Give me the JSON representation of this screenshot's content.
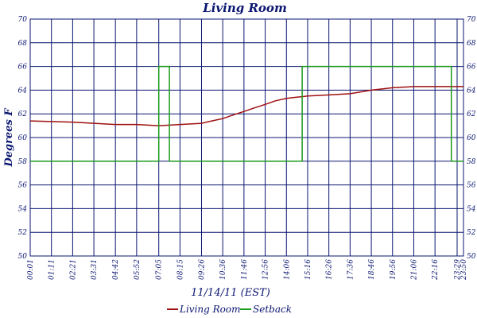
{
  "chart_data": {
    "type": "line",
    "title": "Living Room",
    "xlabel": "11/14/11 (EST)",
    "ylabel": "Degrees F",
    "ylim": [
      50,
      70
    ],
    "yticks": [
      "50",
      "52",
      "54",
      "56",
      "58",
      "60",
      "62",
      "64",
      "66",
      "68",
      "70"
    ],
    "xlim": [
      "00:01",
      "23:50"
    ],
    "xticks": [
      "00:01",
      "01:11",
      "02:21",
      "03:31",
      "04:42",
      "05:52",
      "07:05",
      "08:15",
      "09:26",
      "10:36",
      "11:46",
      "12:56",
      "14:06",
      "15:16",
      "16:26",
      "17:36",
      "18:46",
      "19:56",
      "21:06",
      "22:16",
      "23:29",
      "23:50"
    ],
    "xtick_labels": [
      "00:01",
      "01:11",
      "02:21",
      "03:31",
      "04:42",
      "05:52",
      "07:05",
      "08:15",
      "09:26",
      "10:36",
      "11:46",
      "12:56",
      "14:06",
      "15:16",
      "16:26",
      "17:36",
      "18:46",
      "19:56",
      "21:06",
      "22:16",
      "23:29",
      "23:50"
    ],
    "grid": true,
    "legend_position": "bottom",
    "series": [
      {
        "name": "Living Room",
        "color": "#a01010",
        "x": [
          "00:01",
          "02:21",
          "03:31",
          "04:42",
          "05:52",
          "07:05",
          "08:15",
          "09:26",
          "10:00",
          "10:36",
          "11:10",
          "11:46",
          "12:20",
          "12:56",
          "13:30",
          "14:06",
          "14:40",
          "15:16",
          "16:26",
          "17:36",
          "18:46",
          "19:56",
          "21:06",
          "22:16",
          "23:50"
        ],
        "values": [
          61.4,
          61.3,
          61.2,
          61.1,
          61.1,
          61.0,
          61.1,
          61.2,
          61.4,
          61.6,
          61.9,
          62.2,
          62.5,
          62.8,
          63.1,
          63.3,
          63.4,
          63.5,
          63.6,
          63.7,
          64.0,
          64.2,
          64.3,
          64.3,
          64.3
        ]
      },
      {
        "name": "Setback",
        "color": "#1c9a1c",
        "x": [
          "00:01",
          "07:05",
          "07:05",
          "07:40",
          "07:40",
          "14:58",
          "14:58",
          "23:10",
          "23:10",
          "23:50"
        ],
        "values": [
          58,
          58,
          66,
          66,
          58,
          58,
          66,
          66,
          58,
          58
        ]
      }
    ]
  }
}
